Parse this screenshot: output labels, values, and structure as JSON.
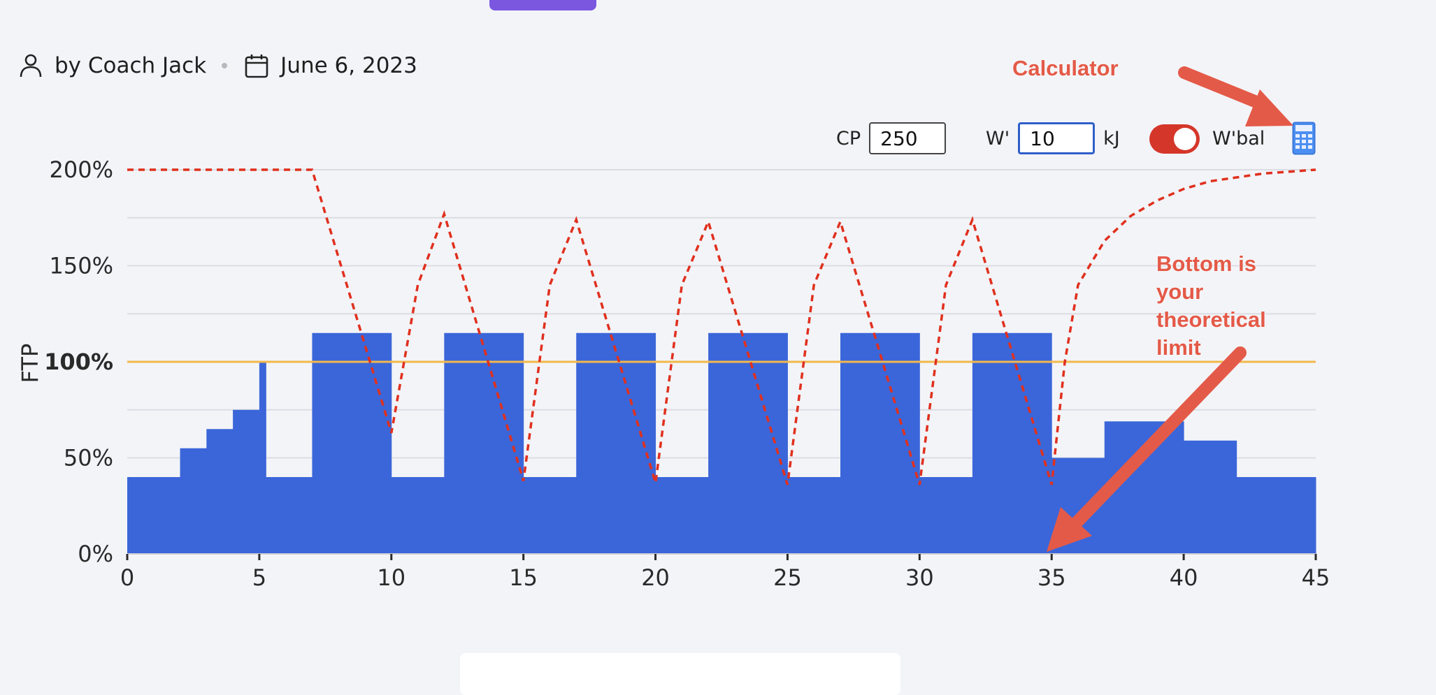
{
  "meta": {
    "author": "by Coach Jack",
    "date": "June 6, 2023"
  },
  "controls": {
    "cp_label": "CP",
    "cp_value": "250",
    "wprime_label": "W'",
    "wprime_value": "10",
    "wprime_unit": "kJ",
    "wbal_label": "W'bal",
    "wbal_enabled": true
  },
  "annotations": {
    "calculator": "Calculator",
    "bottom_note": [
      "Bottom is",
      "your",
      "theoretical",
      "limit"
    ]
  },
  "colors": {
    "bars": "#3b66d9",
    "ftp_line": "#f2b84b",
    "wbal_line": "#e0301e",
    "annotation": "#e45a48",
    "toggle": "#d5362a",
    "accent": "#7b57e0"
  },
  "chart_data": {
    "type": "bar",
    "ylabel": "FTP",
    "ylim": [
      0,
      200
    ],
    "xlim": [
      0,
      45
    ],
    "x_ticks": [
      0,
      5,
      10,
      15,
      20,
      25,
      30,
      35,
      40,
      45
    ],
    "y_ticks": [
      "0%",
      "50%",
      "100%",
      "150%",
      "200%"
    ],
    "y_tick_values": [
      0,
      50,
      100,
      150,
      200
    ],
    "reference_line": 100,
    "intervals": [
      {
        "start": 0,
        "end": 2,
        "value": 40
      },
      {
        "start": 2,
        "end": 3,
        "value": 55
      },
      {
        "start": 3,
        "end": 4,
        "value": 65
      },
      {
        "start": 4,
        "end": 5,
        "value": 75
      },
      {
        "start": 5,
        "end": 5.25,
        "value": 100
      },
      {
        "start": 5.25,
        "end": 7,
        "value": 40
      },
      {
        "start": 7,
        "end": 10,
        "value": 115
      },
      {
        "start": 10,
        "end": 12,
        "value": 40
      },
      {
        "start": 12,
        "end": 15,
        "value": 115
      },
      {
        "start": 15,
        "end": 17,
        "value": 40
      },
      {
        "start": 17,
        "end": 20,
        "value": 115
      },
      {
        "start": 20,
        "end": 22,
        "value": 40
      },
      {
        "start": 22,
        "end": 25,
        "value": 115
      },
      {
        "start": 25,
        "end": 27,
        "value": 40
      },
      {
        "start": 27,
        "end": 30,
        "value": 115
      },
      {
        "start": 30,
        "end": 32,
        "value": 40
      },
      {
        "start": 32,
        "end": 35,
        "value": 115
      },
      {
        "start": 35,
        "end": 37,
        "value": 50
      },
      {
        "start": 37,
        "end": 40,
        "value": 69
      },
      {
        "start": 40,
        "end": 42,
        "value": 59
      },
      {
        "start": 42,
        "end": 45,
        "value": 40
      }
    ],
    "wbal_series": {
      "x": [
        0,
        7,
        10,
        11,
        12,
        15,
        16,
        17,
        20,
        21,
        22,
        25,
        26,
        27,
        30,
        31,
        32,
        35,
        35.5,
        36,
        37,
        38,
        39,
        40,
        41,
        42,
        43,
        44,
        45
      ],
      "y": [
        200,
        200,
        63,
        140,
        177,
        38,
        140,
        174,
        37,
        140,
        173,
        36,
        140,
        173,
        36,
        140,
        174,
        36,
        100,
        140,
        163,
        176,
        184,
        190,
        194,
        196,
        198,
        199,
        200
      ]
    }
  }
}
